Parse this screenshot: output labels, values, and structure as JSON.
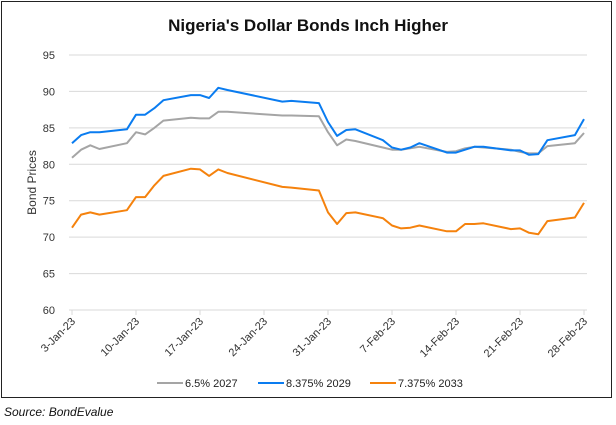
{
  "chart_data": {
    "type": "line",
    "title": "Nigeria's Dollar Bonds Inch Higher",
    "xlabel": "",
    "ylabel": "Bond Prices",
    "ylim": [
      60,
      95
    ],
    "yticks": [
      60,
      65,
      70,
      75,
      80,
      85,
      90,
      95
    ],
    "xlim": [
      "2023-01-03",
      "2023-02-28"
    ],
    "xtick_labels": [
      "3-Jan-23",
      "10-Jan-23",
      "17-Jan-23",
      "24-Jan-23",
      "31-Jan-23",
      "7-Feb-23",
      "14-Feb-23",
      "21-Feb-23",
      "28-Feb-23"
    ],
    "xtick_dates": [
      "2023-01-03",
      "2023-01-10",
      "2023-01-17",
      "2023-01-24",
      "2023-01-31",
      "2023-02-07",
      "2023-02-14",
      "2023-02-21",
      "2023-02-28"
    ],
    "grid": "horizontal",
    "legend": "bottom",
    "x": [
      "2023-01-03",
      "2023-01-04",
      "2023-01-05",
      "2023-01-06",
      "2023-01-09",
      "2023-01-10",
      "2023-01-11",
      "2023-01-12",
      "2023-01-13",
      "2023-01-16",
      "2023-01-17",
      "2023-01-18",
      "2023-01-19",
      "2023-01-20",
      "2023-01-26",
      "2023-01-27",
      "2023-01-30",
      "2023-01-31",
      "2023-02-01",
      "2023-02-02",
      "2023-02-03",
      "2023-02-06",
      "2023-02-07",
      "2023-02-08",
      "2023-02-09",
      "2023-02-10",
      "2023-02-13",
      "2023-02-14",
      "2023-02-15",
      "2023-02-16",
      "2023-02-17",
      "2023-02-20",
      "2023-02-21",
      "2023-02-22",
      "2023-02-23",
      "2023-02-24",
      "2023-02-27",
      "2023-02-28"
    ],
    "series": [
      {
        "name": "6.5% 2027",
        "color": "#a5a5a5",
        "values": [
          80.9,
          82.0,
          82.6,
          82.1,
          82.9,
          84.4,
          84.1,
          85.0,
          86.0,
          86.4,
          86.3,
          86.3,
          87.2,
          87.2,
          86.7,
          86.7,
          86.6,
          84.4,
          82.6,
          83.4,
          83.2,
          82.3,
          82.0,
          82.0,
          82.2,
          82.4,
          81.7,
          81.8,
          82.2,
          82.4,
          82.3,
          82.0,
          81.7,
          81.5,
          81.5,
          82.5,
          82.9,
          84.3
        ]
      },
      {
        "name": "8.375% 2029",
        "color": "#0a7cf0",
        "values": [
          82.9,
          84.0,
          84.4,
          84.4,
          84.8,
          86.8,
          86.8,
          87.7,
          88.8,
          89.5,
          89.5,
          89.1,
          90.5,
          90.2,
          88.6,
          88.7,
          88.4,
          85.8,
          83.9,
          84.7,
          84.8,
          83.3,
          82.3,
          82.0,
          82.3,
          82.9,
          81.6,
          81.6,
          82.0,
          82.4,
          82.4,
          81.9,
          81.9,
          81.3,
          81.4,
          83.3,
          84.0,
          86.2
        ]
      },
      {
        "name": "7.375% 2033",
        "color": "#f5820d",
        "values": [
          71.3,
          73.1,
          73.4,
          73.1,
          73.7,
          75.5,
          75.5,
          77.1,
          78.4,
          79.4,
          79.3,
          78.4,
          79.3,
          78.8,
          76.9,
          76.8,
          76.4,
          73.4,
          71.8,
          73.3,
          73.4,
          72.6,
          71.6,
          71.2,
          71.3,
          71.6,
          70.8,
          70.8,
          71.8,
          71.8,
          71.9,
          71.1,
          71.2,
          70.6,
          70.4,
          72.2,
          72.7,
          74.7
        ]
      }
    ],
    "source": "Source: BondEvalue"
  }
}
